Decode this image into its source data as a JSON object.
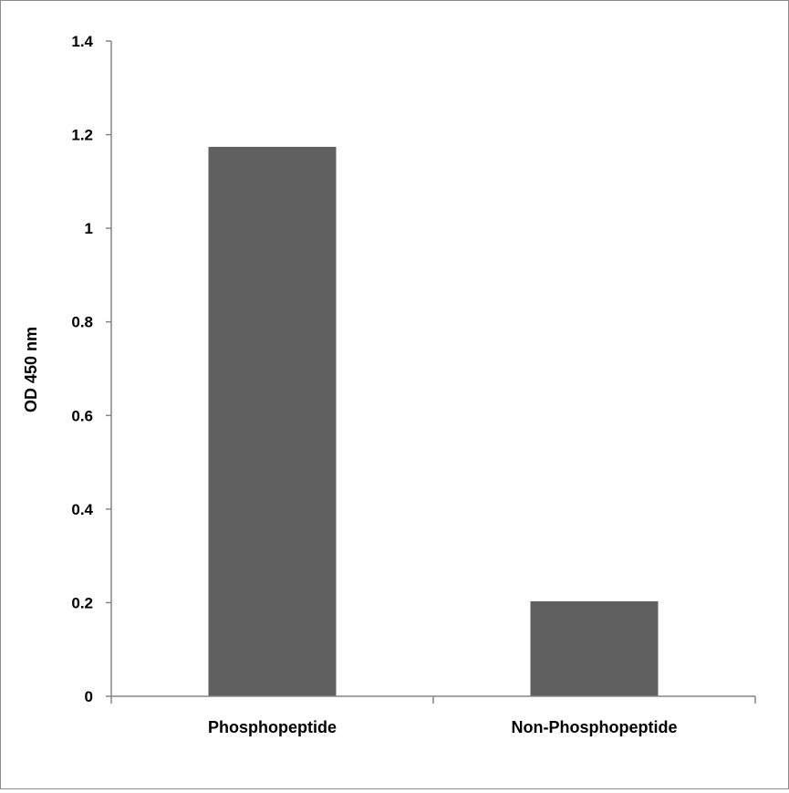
{
  "chart_data": {
    "type": "bar",
    "categories": [
      "Phosphopeptide",
      "Non-Phosphopeptide"
    ],
    "values": [
      1.174,
      0.203
    ],
    "title": "",
    "xlabel": "",
    "ylabel": "OD 450 nm",
    "ylim": [
      0,
      1.4
    ],
    "yticks": [
      "0",
      "0.2",
      "0.4",
      "0.6",
      "0.8",
      "1",
      "1.2",
      "1.4"
    ],
    "grid": false,
    "bar_color": "#606060",
    "axis_color": "#868686"
  }
}
